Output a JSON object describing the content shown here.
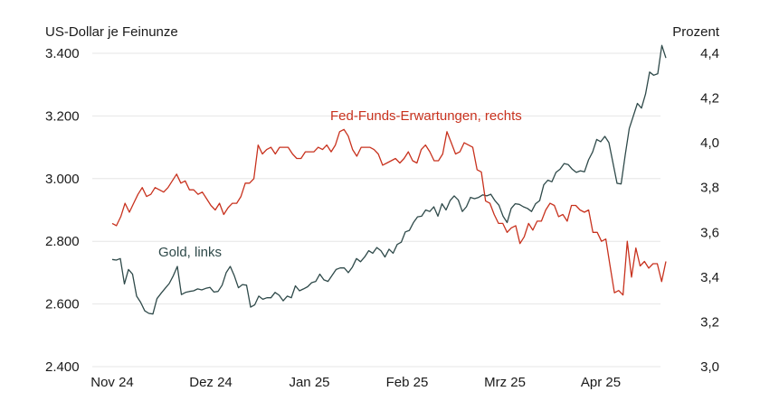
{
  "chart_data": {
    "type": "line",
    "left_axis_title": "US-Dollar je Feinunze",
    "right_axis_title": "Prozent",
    "x_ticks": [
      "Nov 24",
      "Dez 24",
      "Jan 25",
      "Feb 25",
      "Mrz 25",
      "Apr 25"
    ],
    "left_ticks": [
      "3.400",
      "3.200",
      "3.000",
      "2.800",
      "2.600",
      "2.400"
    ],
    "right_ticks": [
      "4,4",
      "4,2",
      "4,0",
      "3,8",
      "3,6",
      "3,4",
      "3,2",
      "3,0"
    ],
    "left_range": [
      2400,
      3400
    ],
    "right_range": [
      3.0,
      4.4
    ],
    "grid": true,
    "series": [
      {
        "name": "Gold, links",
        "axis": "left",
        "color": "#2f4a4a",
        "values": [
          2742,
          2740,
          2745,
          2664,
          2710,
          2695,
          2625,
          2605,
          2578,
          2570,
          2568,
          2617,
          2634,
          2650,
          2665,
          2690,
          2720,
          2630,
          2637,
          2640,
          2642,
          2648,
          2645,
          2650,
          2653,
          2638,
          2640,
          2660,
          2700,
          2720,
          2690,
          2652,
          2662,
          2660,
          2590,
          2597,
          2625,
          2615,
          2620,
          2620,
          2637,
          2628,
          2610,
          2625,
          2620,
          2658,
          2642,
          2648,
          2655,
          2668,
          2672,
          2695,
          2677,
          2672,
          2691,
          2710,
          2715,
          2715,
          2700,
          2718,
          2745,
          2735,
          2750,
          2770,
          2762,
          2780,
          2770,
          2750,
          2775,
          2762,
          2790,
          2797,
          2830,
          2835,
          2860,
          2878,
          2880,
          2900,
          2895,
          2910,
          2880,
          2920,
          2900,
          2930,
          2945,
          2932,
          2895,
          2910,
          2940,
          2936,
          2940,
          2948,
          2945,
          2950,
          2930,
          2915,
          2880,
          2860,
          2905,
          2920,
          2918,
          2910,
          2905,
          2895,
          2920,
          2930,
          2980,
          2995,
          2990,
          3020,
          3030,
          3048,
          3045,
          3030,
          3020,
          3025,
          3022,
          3060,
          3085,
          3125,
          3118,
          3135,
          3115,
          3050,
          2985,
          2983,
          3075,
          3160,
          3200,
          3240,
          3225,
          3270,
          3340,
          3330,
          3335,
          3425,
          3385
        ]
      },
      {
        "name": "Fed-Funds-Erwartungen, rechts",
        "axis": "right",
        "color": "#c8321e",
        "values": [
          3.64,
          3.63,
          3.67,
          3.73,
          3.69,
          3.73,
          3.77,
          3.8,
          3.76,
          3.77,
          3.8,
          3.79,
          3.78,
          3.8,
          3.83,
          3.86,
          3.82,
          3.83,
          3.79,
          3.79,
          3.77,
          3.78,
          3.75,
          3.72,
          3.7,
          3.73,
          3.68,
          3.71,
          3.73,
          3.73,
          3.76,
          3.82,
          3.82,
          3.84,
          3.99,
          3.95,
          3.97,
          3.98,
          3.95,
          3.98,
          3.98,
          3.98,
          3.95,
          3.93,
          3.93,
          3.96,
          3.96,
          3.96,
          3.98,
          3.97,
          3.99,
          3.96,
          3.99,
          4.05,
          4.06,
          4.03,
          3.97,
          3.94,
          3.98,
          3.98,
          3.98,
          3.97,
          3.95,
          3.9,
          3.91,
          3.92,
          3.93,
          3.91,
          3.93,
          3.96,
          3.92,
          3.91,
          3.97,
          3.99,
          3.96,
          3.92,
          3.92,
          3.95,
          4.05,
          4.0,
          3.95,
          3.96,
          4.0,
          3.99,
          3.98,
          3.88,
          3.87,
          3.74,
          3.73,
          3.68,
          3.64,
          3.64,
          3.6,
          3.62,
          3.63,
          3.55,
          3.58,
          3.64,
          3.61,
          3.65,
          3.65,
          3.7,
          3.73,
          3.72,
          3.67,
          3.68,
          3.65,
          3.72,
          3.72,
          3.7,
          3.69,
          3.7,
          3.6,
          3.6,
          3.56,
          3.57,
          3.45,
          3.33,
          3.34,
          3.32,
          3.56,
          3.4,
          3.53,
          3.45,
          3.47,
          3.44,
          3.46,
          3.46,
          3.38,
          3.47
        ]
      }
    ],
    "annotations": [
      {
        "text": "Fed-Funds-Erwartungen, rechts",
        "series": 1,
        "color": "#c8321e"
      },
      {
        "text": "Gold, links",
        "series": 0,
        "color": "#2f4a4a"
      }
    ]
  }
}
